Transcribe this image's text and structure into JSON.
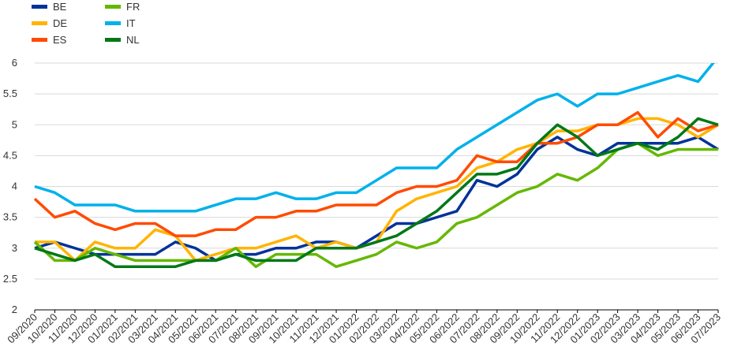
{
  "chart_data": {
    "type": "line",
    "title": "",
    "xlabel": "",
    "ylabel": "",
    "ylim": [
      2,
      6
    ],
    "yticks": [
      "2",
      "2.5",
      "3",
      "3.5",
      "4",
      "4.5",
      "5",
      "5.5",
      "6"
    ],
    "grid": "horizontal",
    "legend": "top-left",
    "x": [
      "09/2020",
      "10/2020",
      "11/2020",
      "12/2020",
      "01/2021",
      "02/2021",
      "03/2021",
      "04/2021",
      "05/2021",
      "06/2021",
      "07/2021",
      "08/2021",
      "09/2021",
      "10/2021",
      "11/2021",
      "12/2021",
      "01/2022",
      "02/2022",
      "03/2022",
      "04/2022",
      "05/2022",
      "06/2022",
      "07/2022",
      "08/2022",
      "09/2022",
      "10/2022",
      "11/2022",
      "12/2022",
      "01/2023",
      "02/2023",
      "03/2023",
      "04/2023",
      "05/2023",
      "06/2023",
      "07/2023"
    ],
    "series": [
      {
        "name": "BE",
        "color": "#003299",
        "values": [
          3.0,
          3.1,
          3.0,
          2.9,
          2.9,
          2.9,
          2.9,
          3.1,
          3.0,
          2.8,
          2.9,
          2.9,
          3.0,
          3.0,
          3.1,
          3.1,
          3.0,
          3.2,
          3.4,
          3.4,
          3.5,
          3.6,
          4.1,
          4.0,
          4.2,
          4.6,
          4.8,
          4.6,
          4.5,
          4.7,
          4.7,
          4.7,
          4.7,
          4.8,
          4.6
        ]
      },
      {
        "name": "DE",
        "color": "#FFB400",
        "values": [
          3.1,
          3.1,
          2.8,
          3.1,
          3.0,
          3.0,
          3.3,
          3.2,
          2.8,
          2.9,
          3.0,
          3.0,
          3.1,
          3.2,
          3.0,
          3.1,
          3.0,
          3.1,
          3.6,
          3.8,
          3.9,
          4.0,
          4.3,
          4.4,
          4.6,
          4.7,
          4.9,
          4.9,
          5.0,
          5.0,
          5.1,
          5.1,
          5.0,
          4.8,
          5.0
        ]
      },
      {
        "name": "ES",
        "color": "#FF4B00",
        "values": [
          3.8,
          3.5,
          3.6,
          3.4,
          3.3,
          3.4,
          3.4,
          3.2,
          3.2,
          3.3,
          3.3,
          3.5,
          3.5,
          3.6,
          3.6,
          3.7,
          3.7,
          3.7,
          3.9,
          4.0,
          4.0,
          4.1,
          4.5,
          4.4,
          4.4,
          4.7,
          4.7,
          4.8,
          5.0,
          5.0,
          5.2,
          4.8,
          5.1,
          4.9,
          5.0
        ]
      },
      {
        "name": "FR",
        "color": "#65B800",
        "values": [
          3.1,
          2.8,
          2.8,
          3.0,
          2.9,
          2.8,
          2.8,
          2.8,
          2.8,
          2.8,
          3.0,
          2.7,
          2.9,
          2.9,
          2.9,
          2.7,
          2.8,
          2.9,
          3.1,
          3.0,
          3.1,
          3.4,
          3.5,
          3.7,
          3.9,
          4.0,
          4.2,
          4.1,
          4.3,
          4.6,
          4.7,
          4.5,
          4.6,
          4.6,
          4.6
        ]
      },
      {
        "name": "IT",
        "color": "#00B1EA",
        "values": [
          4.0,
          3.9,
          3.7,
          3.7,
          3.7,
          3.6,
          3.6,
          3.6,
          3.6,
          3.7,
          3.8,
          3.8,
          3.9,
          3.8,
          3.8,
          3.9,
          3.9,
          4.1,
          4.3,
          4.3,
          4.3,
          4.6,
          4.8,
          5.0,
          5.2,
          5.4,
          5.5,
          5.3,
          5.5,
          5.5,
          5.6,
          5.7,
          5.8,
          5.7,
          6.1
        ]
      },
      {
        "name": "NL",
        "color": "#007816",
        "values": [
          3.0,
          2.9,
          2.8,
          2.9,
          2.7,
          2.7,
          2.7,
          2.7,
          2.8,
          2.8,
          2.9,
          2.8,
          2.8,
          2.8,
          3.0,
          3.0,
          3.0,
          3.1,
          3.2,
          3.4,
          3.6,
          3.9,
          4.2,
          4.2,
          4.3,
          4.7,
          5.0,
          4.8,
          4.5,
          4.6,
          4.7,
          4.6,
          4.8,
          5.1,
          5.0
        ]
      }
    ]
  }
}
